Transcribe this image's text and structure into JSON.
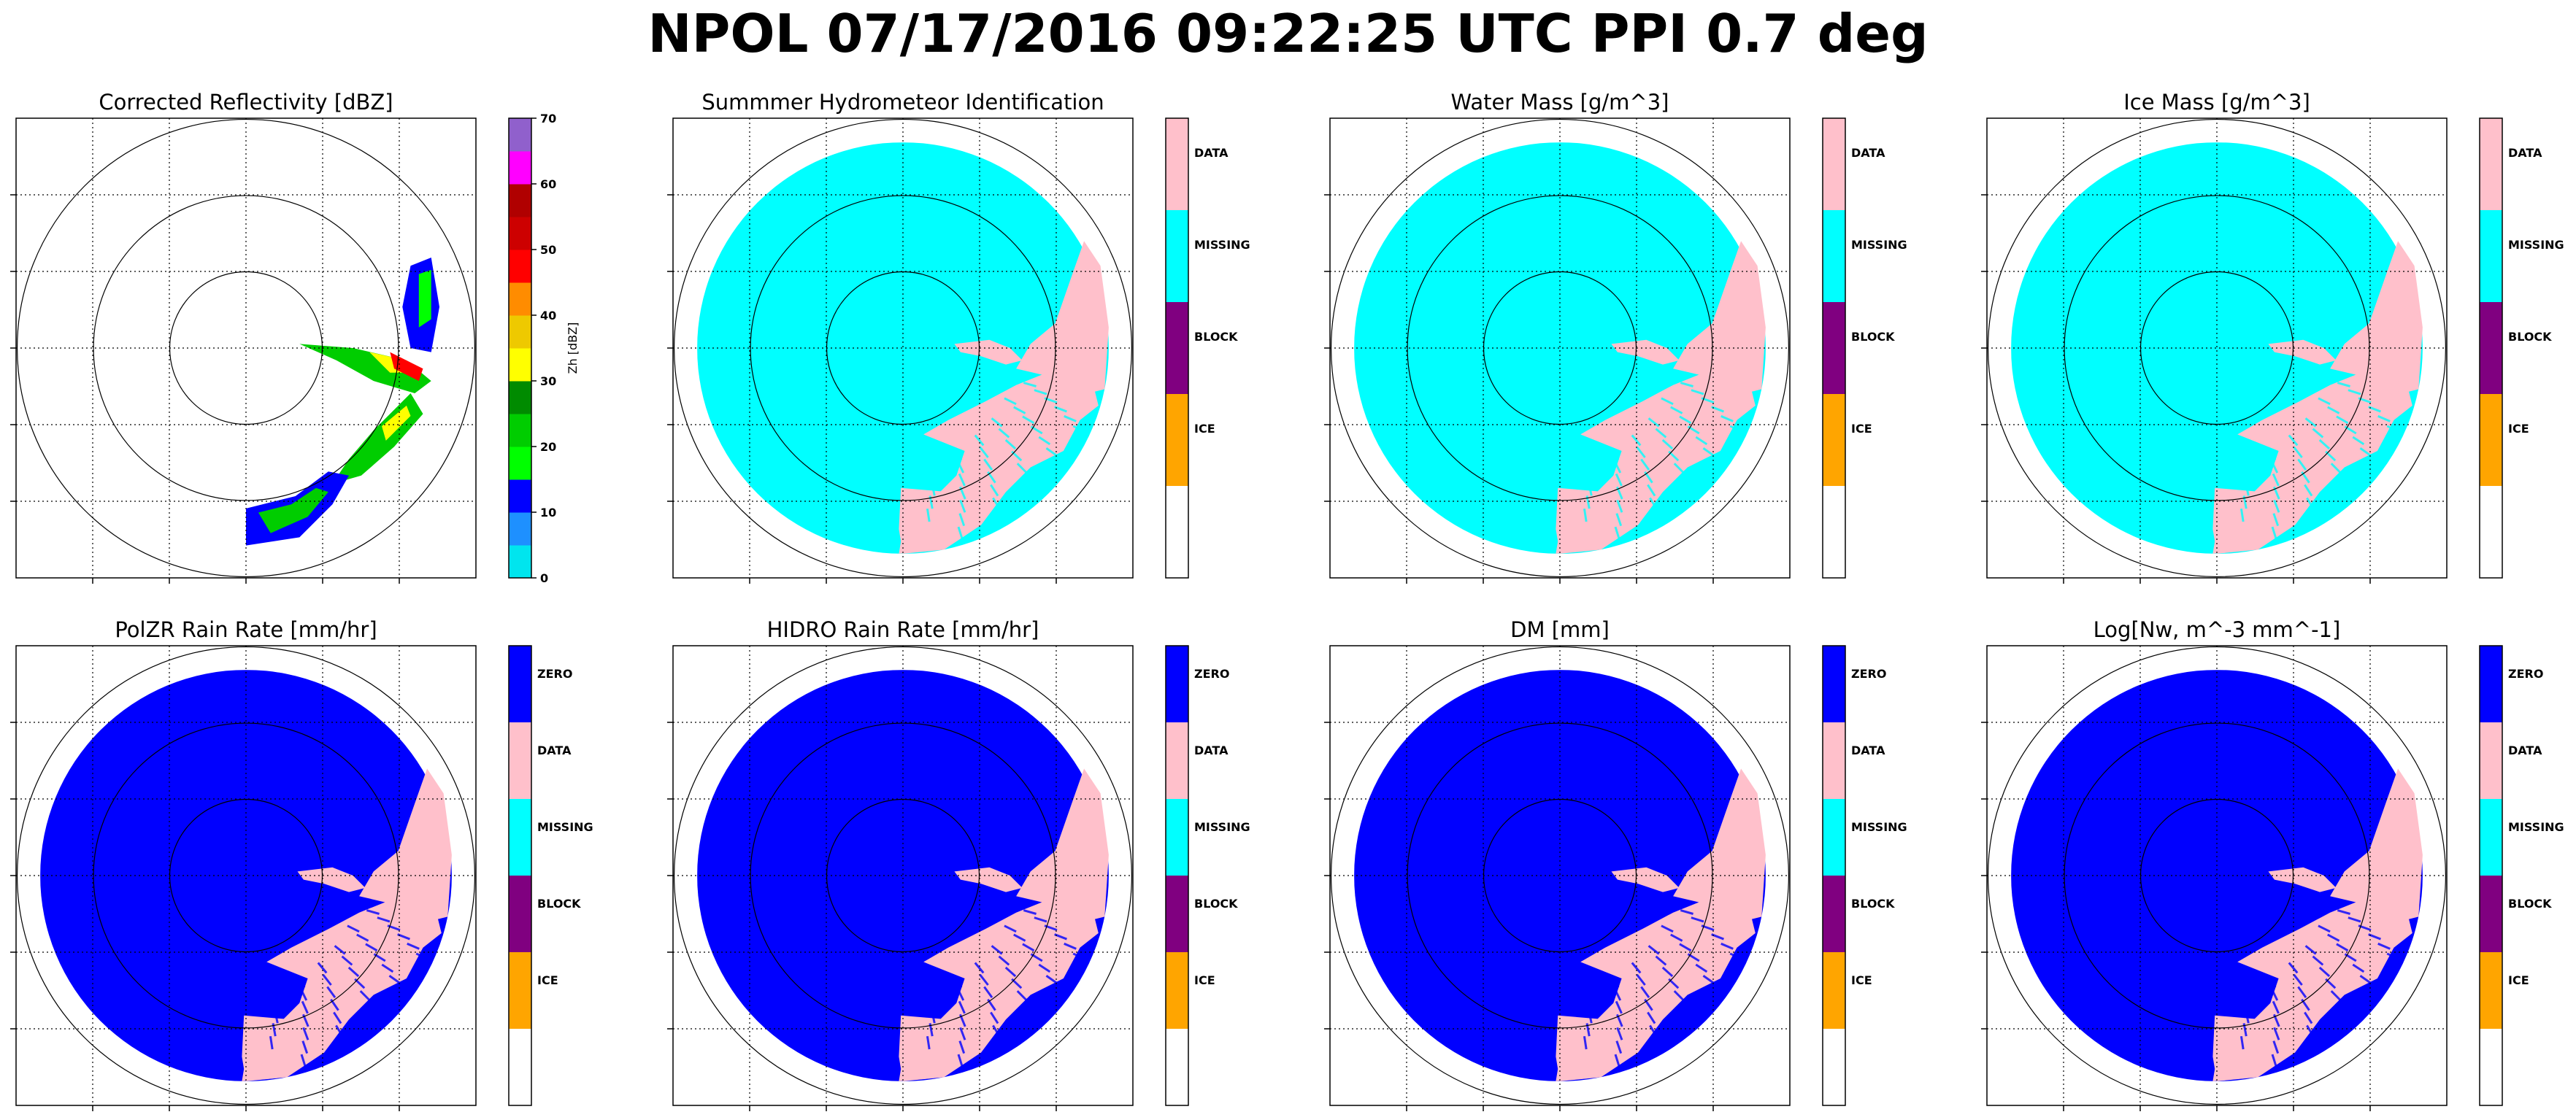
{
  "suptitle": "NPOL 07/17/2016 09:22:25 UTC PPI 0.7 deg",
  "chart_data": [
    {
      "type": "heatmap",
      "title": "Corrected Reflectivity [dBZ]",
      "colorbar": {
        "kind": "continuous",
        "label": "Zh [dBZ]",
        "ticks": [
          "0",
          "10",
          "20",
          "30",
          "40",
          "50",
          "60",
          "70"
        ],
        "range": [
          0,
          70
        ],
        "colors": [
          "#00e5ee",
          "#1e90ff",
          "#0000ff",
          "#00ff00",
          "#00cd00",
          "#008b00",
          "#ffff00",
          "#eec900",
          "#ff8c00",
          "#ff0000",
          "#cd0000",
          "#b00000",
          "#ff00ff",
          "#9060cc"
        ]
      },
      "content": "sparse-reflectivity",
      "range_rings": 3,
      "grid": true
    },
    {
      "type": "heatmap",
      "title": "Summmer Hydrometeor Identification",
      "colorbar": {
        "kind": "categorical",
        "labels": [
          "DATA",
          "MISSING",
          "BLOCK",
          "ICE"
        ],
        "colors": [
          "#ffc0cb",
          "#00ffff",
          "#800080",
          "#ffa500",
          "#ffffff"
        ]
      },
      "fill_color": "#00ffff",
      "echo_color": "#ffc0cb",
      "range_rings": 3,
      "grid": true
    },
    {
      "type": "heatmap",
      "title": "Water Mass [g/m^3]",
      "colorbar": {
        "kind": "categorical",
        "labels": [
          "DATA",
          "MISSING",
          "BLOCK",
          "ICE"
        ],
        "colors": [
          "#ffc0cb",
          "#00ffff",
          "#800080",
          "#ffa500",
          "#ffffff"
        ]
      },
      "fill_color": "#00ffff",
      "echo_color": "#ffc0cb",
      "range_rings": 3,
      "grid": true
    },
    {
      "type": "heatmap",
      "title": "Ice Mass [g/m^3]",
      "colorbar": {
        "kind": "categorical",
        "labels": [
          "DATA",
          "MISSING",
          "BLOCK",
          "ICE"
        ],
        "colors": [
          "#ffc0cb",
          "#00ffff",
          "#800080",
          "#ffa500",
          "#ffffff"
        ]
      },
      "fill_color": "#00ffff",
      "echo_color": "#ffc0cb",
      "range_rings": 3,
      "grid": true
    },
    {
      "type": "heatmap",
      "title": "PolZR Rain Rate [mm/hr]",
      "colorbar": {
        "kind": "categorical",
        "labels": [
          "ZERO",
          "DATA",
          "MISSING",
          "BLOCK",
          "ICE"
        ],
        "colors": [
          "#0000ff",
          "#ffc0cb",
          "#00ffff",
          "#800080",
          "#ffa500",
          "#ffffff"
        ]
      },
      "fill_color": "#0000ff",
      "echo_color": "#ffc0cb",
      "range_rings": 3,
      "grid": true
    },
    {
      "type": "heatmap",
      "title": "HIDRO Rain Rate [mm/hr]",
      "colorbar": {
        "kind": "categorical",
        "labels": [
          "ZERO",
          "DATA",
          "MISSING",
          "BLOCK",
          "ICE"
        ],
        "colors": [
          "#0000ff",
          "#ffc0cb",
          "#00ffff",
          "#800080",
          "#ffa500",
          "#ffffff"
        ]
      },
      "fill_color": "#0000ff",
      "echo_color": "#ffc0cb",
      "range_rings": 3,
      "grid": true
    },
    {
      "type": "heatmap",
      "title": "DM [mm]",
      "colorbar": {
        "kind": "categorical",
        "labels": [
          "ZERO",
          "DATA",
          "MISSING",
          "BLOCK",
          "ICE"
        ],
        "colors": [
          "#0000ff",
          "#ffc0cb",
          "#00ffff",
          "#800080",
          "#ffa500",
          "#ffffff"
        ]
      },
      "fill_color": "#0000ff",
      "echo_color": "#ffc0cb",
      "range_rings": 3,
      "grid": true
    },
    {
      "type": "heatmap",
      "title": "Log[Nw, m^-3 mm^-1]",
      "colorbar": {
        "kind": "categorical",
        "labels": [
          "ZERO",
          "DATA",
          "MISSING",
          "BLOCK",
          "ICE"
        ],
        "colors": [
          "#0000ff",
          "#ffc0cb",
          "#00ffff",
          "#800080",
          "#ffa500",
          "#ffffff"
        ]
      },
      "fill_color": "#0000ff",
      "echo_color": "#ffc0cb",
      "range_rings": 3,
      "grid": true
    }
  ]
}
